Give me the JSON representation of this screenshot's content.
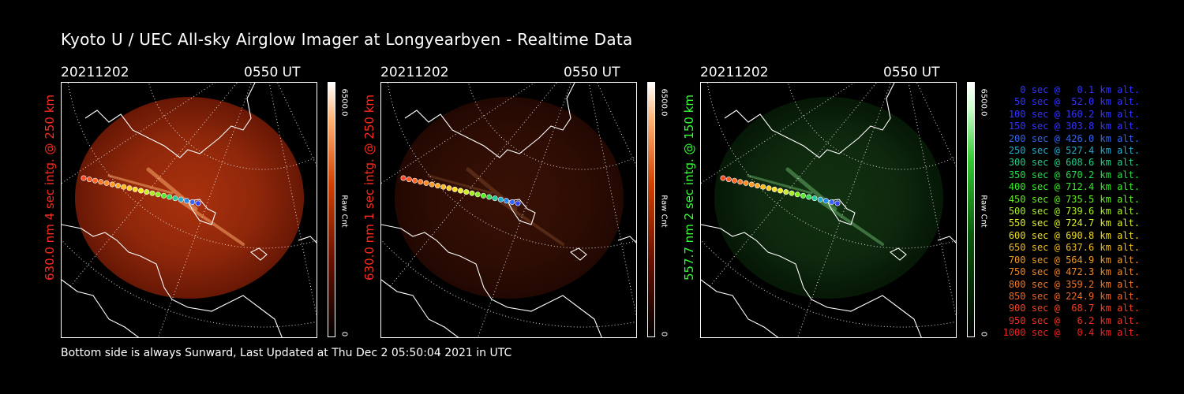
{
  "title": "Kyoto U / UEC All-sky Airglow Imager at Longyearbyen - Realtime Data",
  "footer": "Bottom side is always Sunward, Last Updated at Thu Dec  2 05:50:04 2021 in UTC",
  "panels": [
    {
      "date": "20211202",
      "time": "0550 UT",
      "ylabel": "630.0 nm 4 sec intg. @ 250 km",
      "ylabel_color": "#ff2a1a",
      "cbar_max": "6500.0",
      "cbar_min": "0",
      "cbar_label": "Raw Cnt",
      "palette": "red",
      "glow_opacity": 0.85
    },
    {
      "date": "20211202",
      "time": "0550 UT",
      "ylabel": "630.0 nm 1 sec intg. @ 250 km",
      "ylabel_color": "#ff2a1a",
      "cbar_max": "6500.0",
      "cbar_min": "0",
      "cbar_label": "Raw Cnt",
      "palette": "red",
      "glow_opacity": 0.28
    },
    {
      "date": "20211202",
      "time": "0550 UT",
      "ylabel": "557.7 nm 2 sec intg. @ 150 km",
      "ylabel_color": "#33ff33",
      "cbar_max": "6500.0",
      "cbar_min": "0",
      "cbar_label": "Raw Cnt",
      "palette": "green",
      "glow_opacity": 0.55
    }
  ],
  "legend": [
    {
      "text": "0 sec @   0.1 km alt.",
      "color": "#3333ff"
    },
    {
      "text": "50 sec @  52.0 km alt.",
      "color": "#3333ff"
    },
    {
      "text": "100 sec @ 160.2 km alt.",
      "color": "#3333ff"
    },
    {
      "text": "150 sec @ 303.8 km alt.",
      "color": "#3333ff"
    },
    {
      "text": "200 sec @ 426.0 km alt.",
      "color": "#3366ee"
    },
    {
      "text": "250 sec @ 527.4 km alt.",
      "color": "#22aacc"
    },
    {
      "text": "300 sec @ 608.6 km alt.",
      "color": "#22cc88"
    },
    {
      "text": "350 sec @ 670.2 km alt.",
      "color": "#22dd44"
    },
    {
      "text": "400 sec @ 712.4 km alt.",
      "color": "#33ee22"
    },
    {
      "text": "450 sec @ 735.5 km alt.",
      "color": "#66ee22"
    },
    {
      "text": "500 sec @ 739.6 km alt.",
      "color": "#aaee22"
    },
    {
      "text": "550 sec @ 724.7 km alt.",
      "color": "#ddee22"
    },
    {
      "text": "600 sec @ 690.8 km alt.",
      "color": "#eedd22"
    },
    {
      "text": "650 sec @ 637.6 km alt.",
      "color": "#eebb22"
    },
    {
      "text": "700 sec @ 564.9 km alt.",
      "color": "#ee9922"
    },
    {
      "text": "750 sec @ 472.3 km alt.",
      "color": "#ee8822"
    },
    {
      "text": "800 sec @ 359.2 km alt.",
      "color": "#ee7722"
    },
    {
      "text": "850 sec @ 224.9 km alt.",
      "color": "#ee6622"
    },
    {
      "text": "900 sec @  68.7 km alt.",
      "color": "#ee4422"
    },
    {
      "text": "950 sec @   6.2 km alt.",
      "color": "#ee3322"
    },
    {
      "text": "1000 sec @   0.4 km alt.",
      "color": "#ee2222"
    }
  ],
  "trajectory_colors": [
    "#ff4422",
    "#ff5522",
    "#ff6622",
    "#ff7722",
    "#ff8822",
    "#ff9922",
    "#ffaa22",
    "#ffbb22",
    "#ffcc22",
    "#ffdd22",
    "#eeee22",
    "#ccee22",
    "#aaee22",
    "#88ee22",
    "#55ee22",
    "#33dd55",
    "#22cc99",
    "#22aacc",
    "#2288ee",
    "#3366ff",
    "#3344ff"
  ]
}
